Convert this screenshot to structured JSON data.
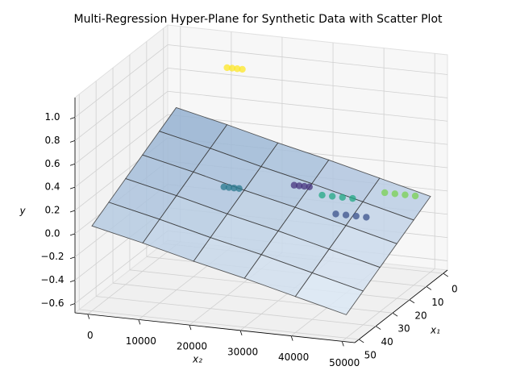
{
  "chart_data": {
    "type": "surface3d",
    "title": "Multi-Regression Hyper-Plane for Synthetic Data with Scatter Plot",
    "x1_label": "x₁",
    "x2_label": "x₂",
    "ylabel": "y",
    "x1lim": [
      -2.5,
      52.5
    ],
    "x2lim": [
      -2500,
      52500
    ],
    "ylim": [
      -0.68,
      1.17
    ],
    "x1ticks": [
      0,
      10,
      20,
      30,
      40,
      50
    ],
    "x2ticks": [
      0,
      10000,
      20000,
      30000,
      40000,
      50000
    ],
    "yticks": [
      {
        "value": -0.6,
        "label": "−0.6"
      },
      {
        "value": -0.4,
        "label": "−0.4"
      },
      {
        "value": -0.2,
        "label": "−0.2"
      },
      {
        "value": 0,
        "label": "0.0"
      },
      0.2,
      0.4,
      0.6,
      0.8,
      {
        "value": 1,
        "label": "1.0"
      }
    ],
    "grid": true,
    "surface": {
      "color": "#5b8fc7",
      "x1": [
        0,
        10,
        20,
        30,
        40,
        50
      ],
      "x2": [
        0,
        10000,
        20000,
        30000,
        40000,
        50000
      ],
      "z": [
        [
          0.5,
          0.4,
          0.29,
          0.19,
          0.08,
          -0.03
        ],
        [
          0.41,
          0.31,
          0.2,
          0.1,
          -0.01,
          -0.12
        ],
        [
          0.32,
          0.22,
          0.11,
          0.01,
          -0.1,
          -0.21
        ],
        [
          0.23,
          0.13,
          0.02,
          -0.08,
          -0.19,
          -0.3
        ],
        [
          0.14,
          0.04,
          -0.07,
          -0.17,
          -0.28,
          -0.39
        ],
        [
          0.05,
          -0.05,
          -0.16,
          -0.26,
          -0.37,
          -0.48
        ]
      ]
    },
    "scatter": {
      "x1": [
        0,
        0,
        0,
        0,
        20,
        20,
        20,
        20,
        10,
        10,
        10,
        10,
        10,
        10,
        10,
        10,
        0,
        0,
        0,
        0,
        20,
        20,
        20,
        20
      ],
      "x2": [
        10000,
        11000,
        12000,
        13000,
        16000,
        17000,
        18000,
        19000,
        26500,
        27500,
        28500,
        29500,
        32000,
        34000,
        36000,
        38000,
        41000,
        43000,
        45000,
        47000,
        38000,
        40000,
        42000,
        44000
      ],
      "y": [
        0.89,
        0.89,
        0.89,
        0.89,
        0.12,
        0.12,
        0.12,
        0.12,
        0.07,
        0.07,
        0.07,
        0.07,
        0.01,
        0.01,
        0.01,
        0.01,
        -0.04,
        -0.04,
        -0.04,
        -0.04,
        -0.01,
        -0.01,
        -0.01,
        -0.01
      ],
      "colors": [
        "#fde725",
        "#fde725",
        "#fde725",
        "#fde725",
        "#2a788e",
        "#2a788e",
        "#2a788e",
        "#2a788e",
        "#46337e",
        "#46337e",
        "#46337e",
        "#46337e",
        "#22a884",
        "#22a884",
        "#22a884",
        "#22a884",
        "#7ad151",
        "#7ad151",
        "#7ad151",
        "#7ad151",
        "#3b528b",
        "#3b528b",
        "#3b528b",
        "#3b528b"
      ]
    }
  }
}
